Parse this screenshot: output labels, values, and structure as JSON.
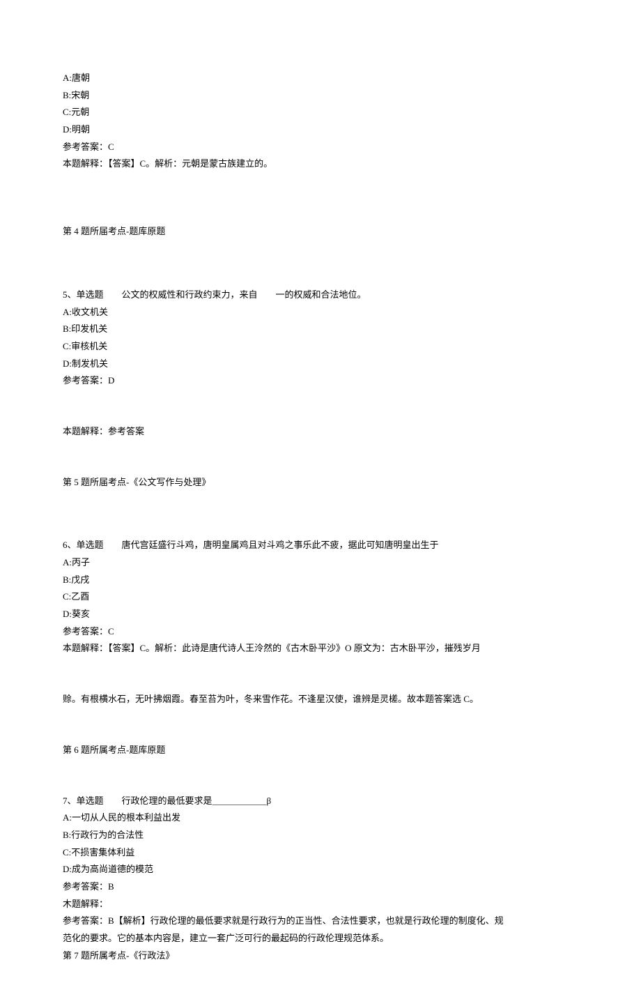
{
  "q4_options": {
    "a": "A:唐朝",
    "b": "B:宋朝",
    "c": "C:元朝",
    "d": "D:明朝",
    "answer": "参考答案：C",
    "explain": "本题解释：【答案】C。解析：元朝是蒙古族建立的。"
  },
  "q4_topic": "第 4 题所届考点-题库原题",
  "q5": {
    "stem": "5、单选题　　公文的权威性和行政约束力，来自　　一的权威和合法地位。",
    "a": "A:收文机关",
    "b": "B:印发机关",
    "c": "C:审核机关",
    "d": "D:制发机关",
    "answer": "参考答案：D",
    "explain": "本题解释：参考答案",
    "topic": "第 5 题所届考点-《公文写作与处理》"
  },
  "q6": {
    "stem": "6、单选题　　唐代宫廷盛行斗鸡，唐明皇属鸡且对斗鸡之事乐此不疲，据此可知唐明皇出生于",
    "a": "A:丙子",
    "b": "B:戊戌",
    "c": "C:乙酉",
    "d": "D:葵亥",
    "answer": "参考答案：C",
    "explain1": "本题解释：【答案】C。解析：此诗是唐代诗人王泠然的《古木卧平沙》O 原文为：古木卧平沙，摧残岁月",
    "explain2": "赊。有根横水石，无叶拂烟霞。春至苔为叶，冬来雪作花。不逢星汉使，谁辨是灵槎。故本题答案选 C。",
    "topic": "第 6 题所属考点-题库原题"
  },
  "q7": {
    "stem": "7、单选题　　行政伦理的最低要求是＿＿＿＿＿＿β",
    "a": "A:一切从人民的根本利益出发",
    "b": "B:行政行为的合法性",
    "c": "C:不损害集体利益",
    "d": "D:成为高尚道德的模范",
    "answer": "参考答案：B",
    "explain_label": "木题解释：",
    "explain1": "参考答案：B【解析】行政伦理的最低要求就是行政行为的正当性、合法性要求，也就是行政伦理的制度化、规",
    "explain2": "范化的要求。它的基本内容是，建立一套广泛可行的最起码的行政伦理规范体系。",
    "topic": "第 7 题所属考点-《行政法》"
  }
}
